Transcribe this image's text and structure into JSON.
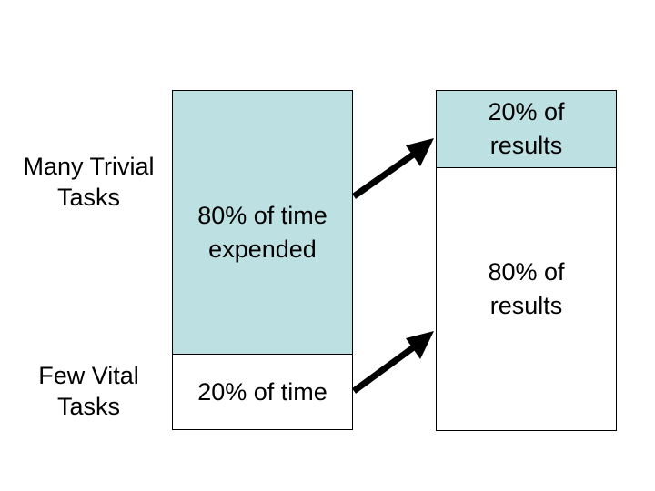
{
  "left_labels": {
    "many_trivial": "Many Trivial\nTasks",
    "few_vital": "Few Vital\nTasks"
  },
  "time_column": {
    "top_label": "80% of time\nexpended",
    "bottom_label": "20% of time"
  },
  "results_column": {
    "top_label": "20% of\nresults",
    "bottom_label": "80% of\nresults"
  },
  "colors": {
    "shaded_fill": "#bde0e2",
    "plain_fill": "#ffffff",
    "border": "#000000",
    "arrow": "#000000"
  },
  "icons": [
    "arrow-right-up-icon",
    "arrow-right-up-icon"
  ]
}
